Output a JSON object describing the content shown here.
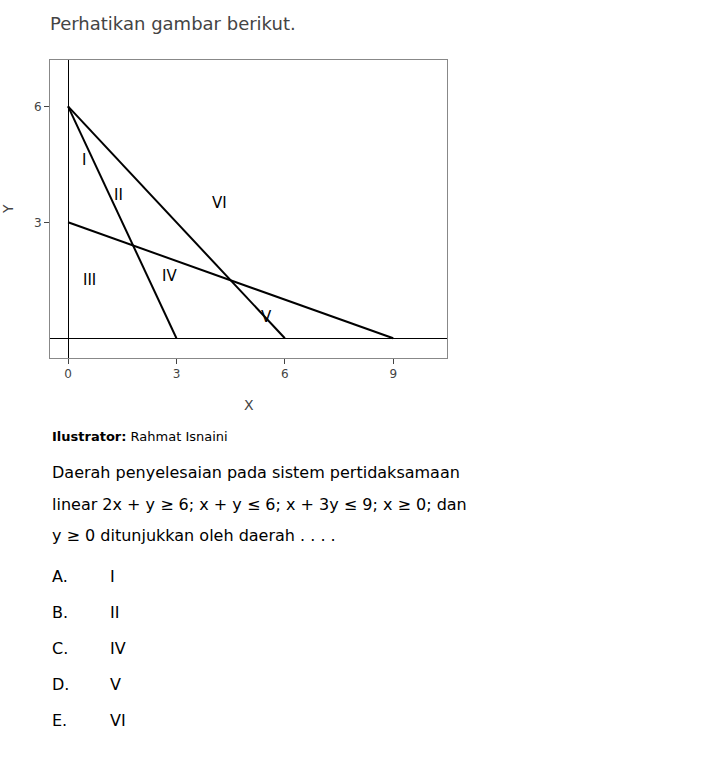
{
  "chart_data": {
    "type": "line",
    "title": "Perhatikan gambar berikut.",
    "xlabel": "X",
    "ylabel": "Y",
    "xlim": [
      -0.5,
      10.5
    ],
    "ylim": [
      -0.5,
      7.2
    ],
    "xticks": [
      0,
      3,
      6,
      9
    ],
    "yticks": [
      3,
      6
    ],
    "grid": false,
    "color": "#000000",
    "series": [
      {
        "x": [
          0,
          3
        ],
        "values": [
          6,
          0
        ]
      },
      {
        "x": [
          0,
          6
        ],
        "values": [
          6,
          0
        ]
      },
      {
        "x": [
          0,
          9
        ],
        "values": [
          3,
          0
        ]
      }
    ],
    "annotations": [
      {
        "text": "I",
        "x": 0.45,
        "y": 4.6
      },
      {
        "text": "II",
        "x": 1.4,
        "y": 3.7
      },
      {
        "text": "III",
        "x": 0.6,
        "y": 1.5
      },
      {
        "text": "IV",
        "x": 2.8,
        "y": 1.6
      },
      {
        "text": "V",
        "x": 5.5,
        "y": 0.55
      },
      {
        "text": "VI",
        "x": 4.2,
        "y": 3.5
      }
    ],
    "subtitle": "Ilustrator: Rahmat Isnaini",
    "question": [
      "Daerah penyelesaian pada sistem pertidaksamaan",
      "linear 2x + y ≥ 6; x + y ≤ 6; x + 3y ≤ 9; x ≥ 0; dan",
      "y ≥ 0 ditunjukkan oleh daerah . . . ."
    ],
    "choices": [
      [
        "A.",
        "I"
      ],
      [
        "B.",
        "II"
      ],
      [
        "C.",
        "IV"
      ],
      [
        "D.",
        "V"
      ],
      [
        "E.",
        "VI"
      ]
    ]
  }
}
